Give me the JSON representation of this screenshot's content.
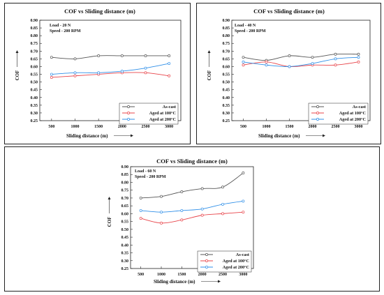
{
  "chart_data": [
    {
      "type": "line",
      "title": "COF vs Sliding distance (m)",
      "xlabel": "Sliding distance (m)",
      "ylabel": "COF",
      "annotation": [
        "Load - 20 N",
        "Speed - 200 RPM"
      ],
      "x": [
        500,
        1000,
        1500,
        2000,
        2500,
        3000
      ],
      "x_ticks": [
        "500",
        "1000",
        "1500",
        "2000",
        "2500",
        "3000"
      ],
      "ylim": [
        0.25,
        0.9
      ],
      "y_ticks": [
        "0.25",
        "0.30",
        "0.35",
        "0.40",
        "0.45",
        "0.50",
        "0.55",
        "0.60",
        "0.65",
        "0.70",
        "0.75",
        "0.80",
        "0.85",
        "0.90"
      ],
      "legend_position": "bottom-right",
      "series": [
        {
          "name": "As-cast",
          "color": "#555555",
          "values": [
            0.66,
            0.65,
            0.67,
            0.67,
            0.67,
            0.67
          ]
        },
        {
          "name": "Aged at 100°C",
          "color": "#e8444a",
          "values": [
            0.53,
            0.54,
            0.55,
            0.56,
            0.56,
            0.54
          ]
        },
        {
          "name": "Aged at 200°C",
          "color": "#2f8fe8",
          "values": [
            0.55,
            0.56,
            0.56,
            0.57,
            0.59,
            0.62
          ]
        }
      ]
    },
    {
      "type": "line",
      "title": "COF vs Sliding distance (m)",
      "xlabel": "Sliding distance (m)",
      "ylabel": "COF",
      "annotation": [
        "Load - 40 N",
        "Speed - 200 RPM"
      ],
      "x": [
        500,
        1000,
        1500,
        2000,
        2500,
        3000
      ],
      "x_ticks": [
        "500",
        "1000",
        "1500",
        "2000",
        "2500",
        "3000"
      ],
      "ylim": [
        0.25,
        0.9
      ],
      "y_ticks": [
        "0.25",
        "0.30",
        "0.35",
        "0.40",
        "0.45",
        "0.50",
        "0.55",
        "0.60",
        "0.65",
        "0.70",
        "0.75",
        "0.80",
        "0.85",
        "0.90"
      ],
      "legend_position": "bottom-right",
      "series": [
        {
          "name": "As-cast",
          "color": "#555555",
          "values": [
            0.66,
            0.64,
            0.67,
            0.66,
            0.68,
            0.68
          ]
        },
        {
          "name": "Aged at 100°C",
          "color": "#e8444a",
          "values": [
            0.61,
            0.63,
            0.6,
            0.61,
            0.61,
            0.63
          ]
        },
        {
          "name": "Aged at 200°C",
          "color": "#2f8fe8",
          "values": [
            0.63,
            0.61,
            0.6,
            0.62,
            0.65,
            0.66
          ]
        }
      ]
    },
    {
      "type": "line",
      "title": "COF vs Sliding distance (m)",
      "xlabel": "Sliding distance (m)",
      "ylabel": "COF",
      "annotation": [
        "Load - 60 N",
        "Speed - 200 RPM"
      ],
      "x": [
        500,
        1000,
        1500,
        2000,
        2500,
        3000
      ],
      "x_ticks": [
        "500",
        "1000",
        "1500",
        "2000",
        "2500",
        "3000"
      ],
      "ylim": [
        0.25,
        0.9
      ],
      "y_ticks": [
        "0.25",
        "0.30",
        "0.35",
        "0.40",
        "0.45",
        "0.50",
        "0.55",
        "0.60",
        "0.65",
        "0.70",
        "0.75",
        "0.80",
        "0.85",
        "0.90"
      ],
      "legend_position": "bottom-right",
      "series": [
        {
          "name": "As-cast",
          "color": "#555555",
          "values": [
            0.7,
            0.71,
            0.74,
            0.76,
            0.77,
            0.86
          ]
        },
        {
          "name": "Aged at 100°C",
          "color": "#e8444a",
          "values": [
            0.57,
            0.54,
            0.56,
            0.59,
            0.6,
            0.61
          ]
        },
        {
          "name": "Aged at 200°C",
          "color": "#2f8fe8",
          "values": [
            0.62,
            0.61,
            0.62,
            0.63,
            0.66,
            0.68
          ]
        }
      ]
    }
  ]
}
